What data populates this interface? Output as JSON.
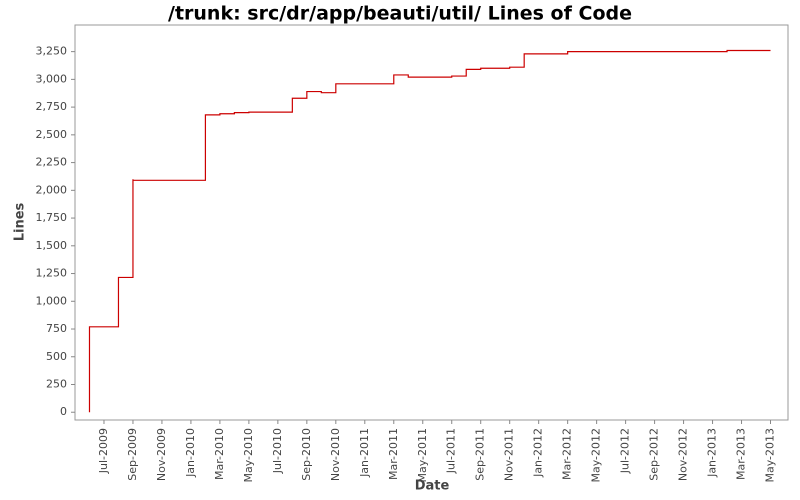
{
  "chart_data": {
    "type": "step-line",
    "title": "/trunk: src/dr/app/beauti/util/ Lines of Code",
    "x_label": "Date",
    "y_label": "Lines",
    "x": [
      "2009-06",
      "2009-06",
      "2009-08",
      "2009-09",
      "2009-09",
      "2009-09",
      "2010-02",
      "2010-03",
      "2010-04",
      "2010-05",
      "2010-08",
      "2010-09",
      "2010-10",
      "2010-11",
      "2011-03",
      "2011-04",
      "2011-07",
      "2011-08",
      "2011-09",
      "2011-11",
      "2011-12",
      "2012-03",
      "2013-02",
      "2013-05"
    ],
    "series": [
      {
        "name": "Lines",
        "color": "#cc0000",
        "values": [
          0,
          770,
          1215,
          1650,
          2100,
          2090,
          2680,
          2690,
          2700,
          2705,
          2830,
          2890,
          2880,
          2960,
          3040,
          3020,
          3030,
          3090,
          3100,
          3110,
          3230,
          3250,
          3260,
          3260
        ]
      }
    ],
    "xlim": [
      "2009-05",
      "2013-06"
    ],
    "xticks": [
      {
        "value": "2009-07",
        "label": "Jul-2009"
      },
      {
        "value": "2009-09",
        "label": "Sep-2009"
      },
      {
        "value": "2009-11",
        "label": "Nov-2009"
      },
      {
        "value": "2010-01",
        "label": "Jan-2010"
      },
      {
        "value": "2010-03",
        "label": "Mar-2010"
      },
      {
        "value": "2010-05",
        "label": "May-2010"
      },
      {
        "value": "2010-07",
        "label": "Jul-2010"
      },
      {
        "value": "2010-09",
        "label": "Sep-2010"
      },
      {
        "value": "2010-11",
        "label": "Nov-2010"
      },
      {
        "value": "2011-01",
        "label": "Jan-2011"
      },
      {
        "value": "2011-03",
        "label": "Mar-2011"
      },
      {
        "value": "2011-05",
        "label": "May-2011"
      },
      {
        "value": "2011-07",
        "label": "Jul-2011"
      },
      {
        "value": "2011-09",
        "label": "Sep-2011"
      },
      {
        "value": "2011-11",
        "label": "Nov-2011"
      },
      {
        "value": "2012-01",
        "label": "Jan-2012"
      },
      {
        "value": "2012-03",
        "label": "Mar-2012"
      },
      {
        "value": "2012-05",
        "label": "May-2012"
      },
      {
        "value": "2012-07",
        "label": "Jul-2012"
      },
      {
        "value": "2012-09",
        "label": "Sep-2012"
      },
      {
        "value": "2012-11",
        "label": "Nov-2012"
      },
      {
        "value": "2013-01",
        "label": "Jan-2013"
      },
      {
        "value": "2013-03",
        "label": "Mar-2013"
      },
      {
        "value": "2013-05",
        "label": "May-2013"
      }
    ],
    "ylim": [
      -70,
      3490
    ],
    "yticks": [
      0,
      {
        "value": 250,
        "label": "250"
      },
      {
        "value": 500,
        "label": "500"
      },
      {
        "value": 750,
        "label": "750"
      },
      {
        "value": 1000,
        "label": "1,000"
      },
      {
        "value": 1250,
        "label": "1,250"
      },
      {
        "value": 1500,
        "label": "1,500"
      },
      {
        "value": 1750,
        "label": "1,750"
      },
      {
        "value": 2000,
        "label": "2,000"
      },
      {
        "value": 2250,
        "label": "2,250"
      },
      {
        "value": 2500,
        "label": "2,500"
      },
      {
        "value": 2750,
        "label": "2,750"
      },
      {
        "value": 3000,
        "label": "3,000"
      },
      {
        "value": 3250,
        "label": "3,250"
      }
    ],
    "grid": false
  }
}
